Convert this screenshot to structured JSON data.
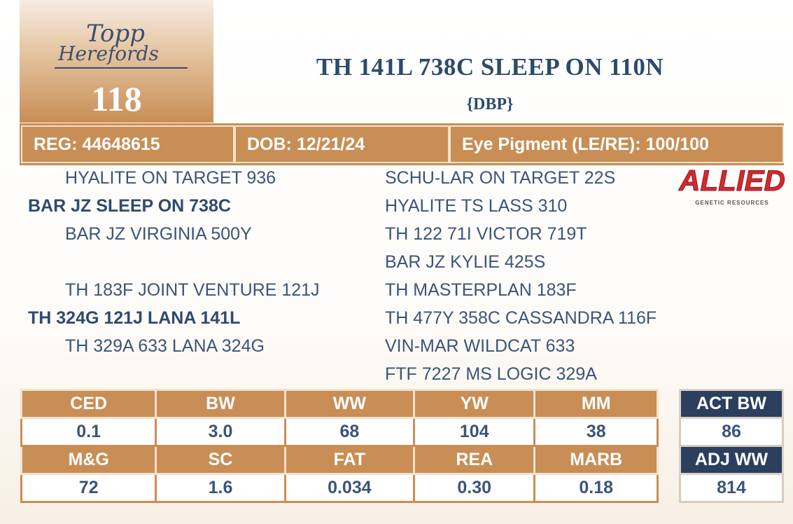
{
  "logo": {
    "line1": "Topp",
    "line2": "Herefords"
  },
  "lot": "118",
  "title": "TH 141L 738C SLEEP ON 110N",
  "subtitle": "{DBP}",
  "info": [
    "REG: 44648615",
    "DOB: 12/21/24",
    "Eye Pigment (LE/RE): 100/100"
  ],
  "pedigree": {
    "left": [
      {
        "text": "HYALITE ON TARGET 936",
        "bold": false,
        "row": 0
      },
      {
        "text": "BAR JZ SLEEP ON 738C",
        "bold": true,
        "row": 1
      },
      {
        "text": "BAR JZ VIRGINIA 500Y",
        "bold": false,
        "row": 2
      },
      {
        "text": "TH 183F JOINT VENTURE 121J",
        "bold": false,
        "row": 4
      },
      {
        "text": "TH 324G 121J LANA 141L",
        "bold": true,
        "row": 5
      },
      {
        "text": "TH 329A 633 LANA 324G",
        "bold": false,
        "row": 6
      }
    ],
    "right": [
      "SCHU-LAR ON TARGET 22S",
      "HYALITE TS LASS 310",
      "TH 122 71I VICTOR 719T",
      "BAR JZ KYLIE 425S",
      "TH MASTERPLAN 183F",
      "TH 477Y 358C CASSANDRA 116F",
      "VIN-MAR WILDCAT 633",
      "FTF 7227 MS LOGIC 329A"
    ]
  },
  "allied_logo": {
    "name": "ALLIED",
    "tagline": "GENETIC RESOURCES"
  },
  "epd_table": {
    "rows": [
      [
        "CED",
        "BW",
        "WW",
        "YW",
        "MM"
      ],
      [
        "0.1",
        "3.0",
        "68",
        "104",
        "38"
      ],
      [
        "M&G",
        "SC",
        "FAT",
        "REA",
        "MARB"
      ],
      [
        "72",
        "1.6",
        "0.034",
        "0.30",
        "0.18"
      ]
    ]
  },
  "weights_table": {
    "rows": [
      [
        "ACT BW"
      ],
      [
        "86"
      ],
      [
        "ADJ WW"
      ],
      [
        "814"
      ]
    ]
  }
}
